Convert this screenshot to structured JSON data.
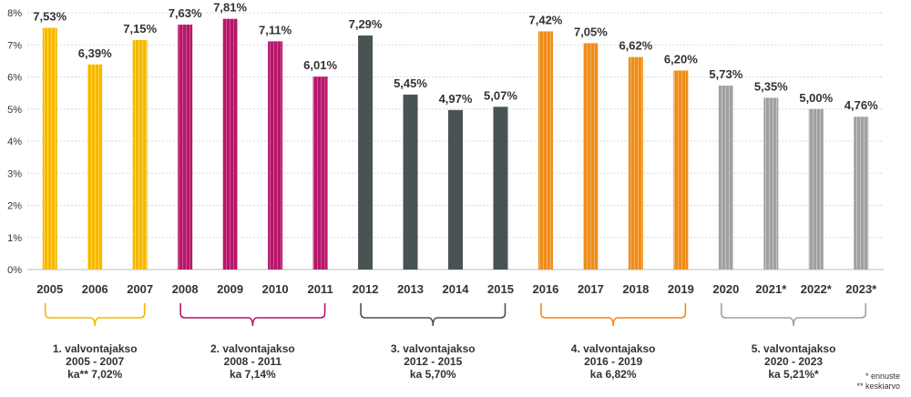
{
  "chart_data": {
    "type": "bar",
    "categories": [
      "2005",
      "2006",
      "2007",
      "2008",
      "2009",
      "2010",
      "2011",
      "2012",
      "2013",
      "2014",
      "2015",
      "2016",
      "2017",
      "2018",
      "2019",
      "2020",
      "2021*",
      "2022*",
      "2023*"
    ],
    "values": [
      7.53,
      6.39,
      7.15,
      7.63,
      7.81,
      7.11,
      6.01,
      7.29,
      5.45,
      4.97,
      5.07,
      7.42,
      7.05,
      6.62,
      6.2,
      5.73,
      5.35,
      5.0,
      4.76
    ],
    "data_labels": [
      "7,53%",
      "6,39%",
      "7,15%",
      "7,63%",
      "7,81%",
      "7,11%",
      "6,01%",
      "7,29%",
      "5,45%",
      "4,97%",
      "5,07%",
      "7,42%",
      "7,05%",
      "6,62%",
      "6,20%",
      "5,73%",
      "5,35%",
      "5,00%",
      "4,76%"
    ],
    "ylim": [
      0,
      8
    ],
    "yticks": [
      "0%",
      "1%",
      "2%",
      "3%",
      "4%",
      "5%",
      "6%",
      "7%",
      "8%"
    ],
    "grid": true,
    "periods": [
      {
        "line1": "1. valvontajakso",
        "line2": "2005 - 2007",
        "line3": "ka** 7,02%",
        "start": 0,
        "end": 2,
        "color": "#f5b800"
      },
      {
        "line1": "2. valvontajakso",
        "line2": "2008 - 2011",
        "line3": "ka 7,14%",
        "start": 3,
        "end": 6,
        "color": "#b5176a"
      },
      {
        "line1": "3. valvontajakso",
        "line2": "2012 - 2015",
        "line3": "ka 5,70%",
        "start": 7,
        "end": 10,
        "color": "#4a5354"
      },
      {
        "line1": "4. valvontajakso",
        "line2": "2016 - 2019",
        "line3": "ka 6,82%",
        "start": 11,
        "end": 14,
        "color": "#ee8c1a"
      },
      {
        "line1": "5. valvontajakso",
        "line2": "2020 - 2023",
        "line3": "ka 5,21%*",
        "start": 15,
        "end": 18,
        "color": "#a0a0a0"
      }
    ]
  },
  "footnotes": {
    "forecast": "* ennuste",
    "average": "** keskiarvo"
  }
}
